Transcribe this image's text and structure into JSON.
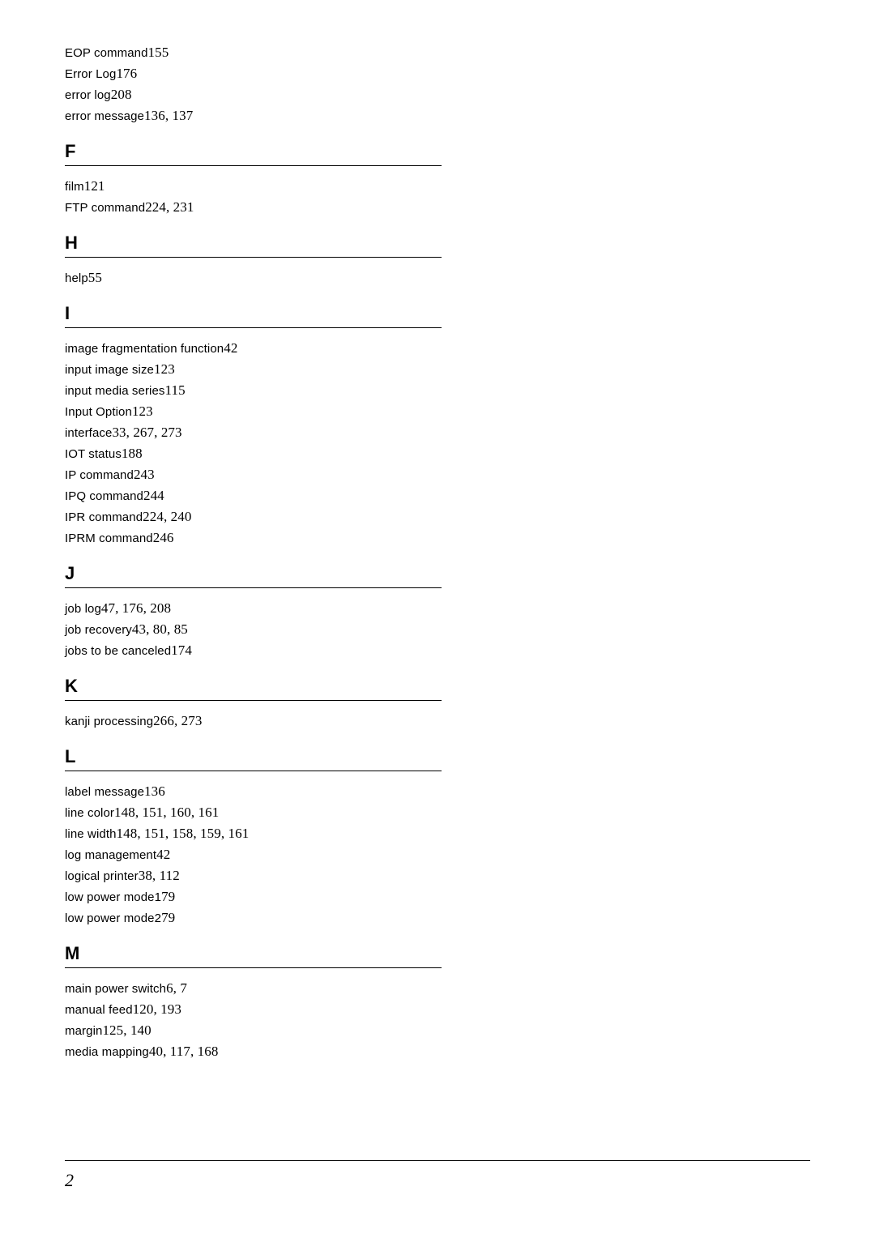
{
  "pre_entries": [
    {
      "term": "EOP command",
      "pages": "155"
    },
    {
      "term": "Error Log",
      "pages": "176"
    },
    {
      "term": "error log",
      "pages": "208"
    },
    {
      "term": "error message",
      "pages": "136, 137"
    }
  ],
  "sections": [
    {
      "letter": "F",
      "entries": [
        {
          "term": "film",
          "pages": "121"
        },
        {
          "term": "FTP command",
          "pages": "224, 231"
        }
      ]
    },
    {
      "letter": "H",
      "entries": [
        {
          "term": "help",
          "pages": "55"
        }
      ]
    },
    {
      "letter": "I",
      "entries": [
        {
          "term": "image fragmentation function",
          "pages": "42"
        },
        {
          "term": "input image size",
          "pages": "123"
        },
        {
          "term": "input media series",
          "pages": "115"
        },
        {
          "term": "Input Option",
          "pages": "123"
        },
        {
          "term": "interface",
          "pages": "33, 267, 273"
        },
        {
          "term": "IOT status",
          "pages": "188"
        },
        {
          "term": "IP command",
          "pages": "243"
        },
        {
          "term": "IPQ command",
          "pages": "244"
        },
        {
          "term": "IPR command",
          "pages": "224, 240"
        },
        {
          "term": "IPRM command",
          "pages": "246"
        }
      ]
    },
    {
      "letter": "J",
      "entries": [
        {
          "term": "job log",
          "pages": "47, 176, 208"
        },
        {
          "term": "job recovery",
          "pages": "43, 80, 85"
        },
        {
          "term": "jobs to be canceled",
          "pages": "174"
        }
      ]
    },
    {
      "letter": "K",
      "entries": [
        {
          "term": "kanji processing",
          "pages": "266, 273"
        }
      ]
    },
    {
      "letter": "L",
      "entries": [
        {
          "term": "label message",
          "pages": "136"
        },
        {
          "term": "line color",
          "pages": "148, 151, 160, 161"
        },
        {
          "term": "line width",
          "pages": "148, 151, 158, 159, 161"
        },
        {
          "term": "log management",
          "pages": "42"
        },
        {
          "term": "logical printer",
          "pages": "38, 112"
        },
        {
          "term": "low power mode1",
          "pages": "79"
        },
        {
          "term": "low power mode2",
          "pages": "79"
        }
      ]
    },
    {
      "letter": "M",
      "entries": [
        {
          "term": "main power switch",
          "pages": "6, 7"
        },
        {
          "term": "manual feed",
          "pages": "120, 193"
        },
        {
          "term": "margin",
          "pages": "125, 140"
        },
        {
          "term": "media mapping",
          "pages": "40, 117, 168"
        }
      ]
    }
  ],
  "page_number": "2"
}
